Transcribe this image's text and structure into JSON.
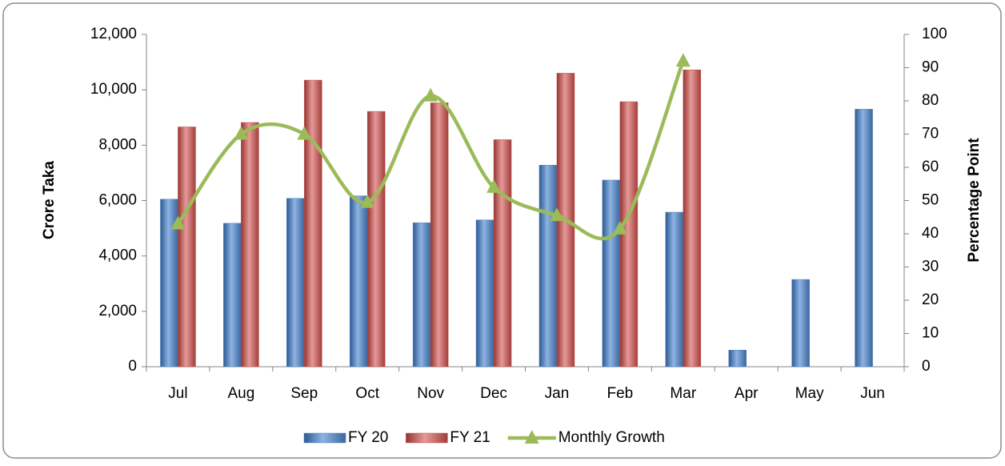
{
  "chart_data": {
    "type": "bar-line",
    "categories": [
      "Jul",
      "Aug",
      "Sep",
      "Oct",
      "Nov",
      "Dec",
      "Jan",
      "Feb",
      "Mar",
      "Apr",
      "May",
      "Jun"
    ],
    "y_label": "Crore Taka",
    "y2_label": "Percentage Point",
    "series": [
      {
        "name": "FY 20",
        "type": "bar",
        "color": "#4f81bd",
        "values": [
          6050,
          5180,
          6080,
          6170,
          5200,
          5300,
          7280,
          6740,
          5580,
          600,
          3150,
          9300
        ]
      },
      {
        "name": "FY 21",
        "type": "bar",
        "color": "#c0504d",
        "values": [
          8660,
          8820,
          10350,
          9220,
          9530,
          8200,
          10600,
          9570,
          10720,
          null,
          null,
          null
        ]
      },
      {
        "name": "Monthly Growth",
        "type": "line",
        "axis": "y2",
        "color": "#9bbb59",
        "values": [
          43,
          70,
          70,
          49.5,
          81.5,
          54,
          45.5,
          41.5,
          92,
          null,
          null,
          null
        ]
      }
    ],
    "ylim": [
      0,
      12000
    ],
    "yticks": [
      0,
      {
        "value": 2000,
        "label": "2,000"
      },
      {
        "value": 4000,
        "label": "4,000"
      },
      {
        "value": 6000,
        "label": "6,000"
      },
      {
        "value": 8000,
        "label": "8,000"
      },
      {
        "value": 10000,
        "label": "10,000"
      },
      {
        "value": 12000,
        "label": "12,000"
      }
    ],
    "y2lim": [
      0,
      100
    ],
    "y2ticks": [
      0,
      10,
      20,
      30,
      40,
      50,
      60,
      70,
      80,
      90,
      100
    ],
    "legend": "bottom"
  }
}
